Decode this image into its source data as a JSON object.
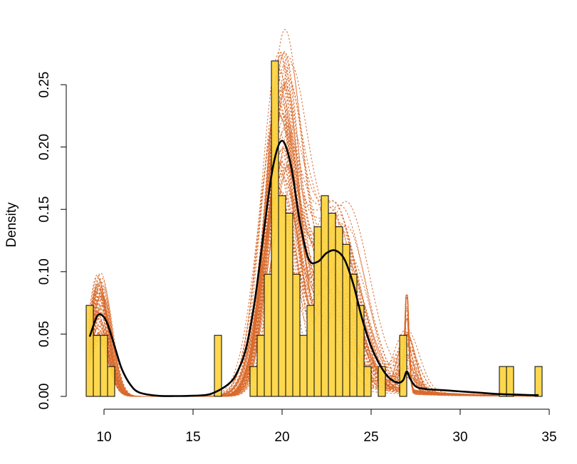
{
  "chart_data": {
    "type": "histogram",
    "title": "",
    "xlabel": "",
    "ylabel": "Density",
    "xlim": [
      9,
      35
    ],
    "ylim": [
      0,
      0.25
    ],
    "xticks": [
      "10",
      "15",
      "20",
      "25",
      "30",
      "35"
    ],
    "yticks": [
      "0.00",
      "0.05",
      "0.10",
      "0.15",
      "0.20",
      "0.25"
    ],
    "grid": false,
    "colors": {
      "bars": "#FDD540",
      "density_draws": "#D96A2B",
      "mean_density": "#000000"
    },
    "histogram": {
      "bin_width": 0.4,
      "bins": [
        {
          "start": 9.0,
          "density": 0.073
        },
        {
          "start": 9.4,
          "density": 0.049
        },
        {
          "start": 9.8,
          "density": 0.049
        },
        {
          "start": 10.2,
          "density": 0.024
        },
        {
          "start": 16.2,
          "density": 0.049
        },
        {
          "start": 18.2,
          "density": 0.024
        },
        {
          "start": 18.6,
          "density": 0.049
        },
        {
          "start": 19.0,
          "density": 0.098
        },
        {
          "start": 19.4,
          "density": 0.269
        },
        {
          "start": 19.8,
          "density": 0.161
        },
        {
          "start": 20.2,
          "density": 0.147
        },
        {
          "start": 20.6,
          "density": 0.098
        },
        {
          "start": 21.0,
          "density": 0.049
        },
        {
          "start": 21.4,
          "density": 0.073
        },
        {
          "start": 21.8,
          "density": 0.136
        },
        {
          "start": 22.2,
          "density": 0.161
        },
        {
          "start": 22.6,
          "density": 0.147
        },
        {
          "start": 23.0,
          "density": 0.136
        },
        {
          "start": 23.4,
          "density": 0.122
        },
        {
          "start": 23.8,
          "density": 0.098
        },
        {
          "start": 24.2,
          "density": 0.073
        },
        {
          "start": 24.6,
          "density": 0.024
        },
        {
          "start": 25.4,
          "density": 0.024
        },
        {
          "start": 26.6,
          "density": 0.049
        },
        {
          "start": 32.2,
          "density": 0.024
        },
        {
          "start": 32.6,
          "density": 0.024
        },
        {
          "start": 34.2,
          "density": 0.024
        }
      ]
    },
    "mean_density": {
      "x": [
        9.2,
        9.6,
        9.9,
        10.2,
        10.6,
        11.0,
        11.5,
        12.0,
        13.0,
        14.0,
        15.0,
        16.0,
        17.0,
        17.5,
        18.0,
        18.5,
        19.0,
        19.5,
        20.0,
        20.5,
        21.0,
        21.5,
        22.0,
        22.5,
        23.0,
        23.5,
        24.0,
        24.5,
        25.0,
        25.5,
        26.0,
        26.5,
        26.8,
        27.0,
        27.2,
        27.5,
        28.0,
        29.0,
        30.0,
        31.0,
        32.0,
        33.0,
        34.0,
        34.4
      ],
      "y": [
        0.048,
        0.064,
        0.065,
        0.058,
        0.04,
        0.022,
        0.009,
        0.003,
        0.0005,
        0.0003,
        0.0005,
        0.002,
        0.01,
        0.02,
        0.04,
        0.08,
        0.135,
        0.185,
        0.205,
        0.185,
        0.14,
        0.11,
        0.108,
        0.115,
        0.117,
        0.11,
        0.09,
        0.062,
        0.04,
        0.025,
        0.015,
        0.011,
        0.013,
        0.02,
        0.014,
        0.008,
        0.006,
        0.005,
        0.004,
        0.003,
        0.002,
        0.0015,
        0.001,
        0.001
      ]
    },
    "posterior_draws": {
      "count": 60,
      "peak_20_range": [
        0.145,
        0.28
      ],
      "peak_10_range": [
        0.045,
        0.1
      ],
      "peak_27_range": [
        0.01,
        0.088
      ]
    }
  }
}
